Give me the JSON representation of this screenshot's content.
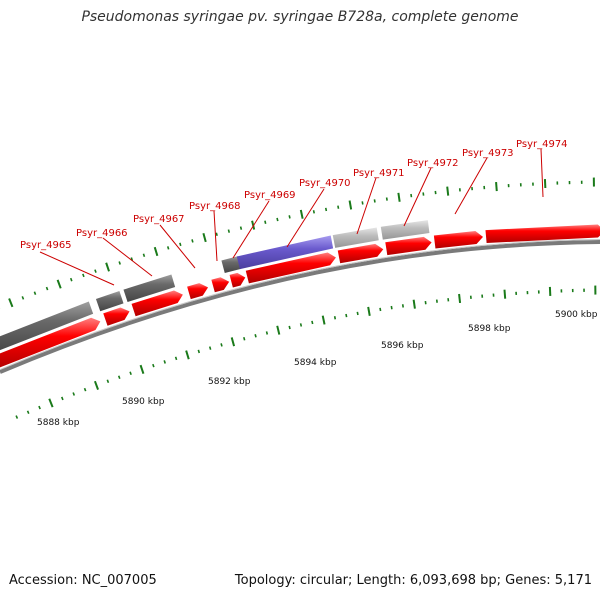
{
  "title": "Pseudomonas syringae pv. syringae B728a, complete genome",
  "footer": {
    "accession": "Accession: NC_007005",
    "genome_info": "Topology: circular; Length: 6,093,698 bp; Genes: 5,171"
  },
  "colors": {
    "forward_gene": "#e60000",
    "reverse_gene_dark": "#666666",
    "reverse_gene_light": "#b8b8b8",
    "highlighted_gene": "#6a5acd",
    "backbone": "#7a7a7a",
    "tick": "#1a7a1a",
    "gene_label": "#cc0000"
  },
  "scale_labels": [
    "5888 kbp",
    "5890 kbp",
    "5892 kbp",
    "5894 kbp",
    "5896 kbp",
    "5898 kbp",
    "5900 kbp"
  ],
  "gene_labels": [
    "Psyr_4965",
    "Psyr_4966",
    "Psyr_4967",
    "Psyr_4968",
    "Psyr_4969",
    "Psyr_4970",
    "Psyr_4971",
    "Psyr_4972",
    "Psyr_4973",
    "Psyr_4974"
  ]
}
